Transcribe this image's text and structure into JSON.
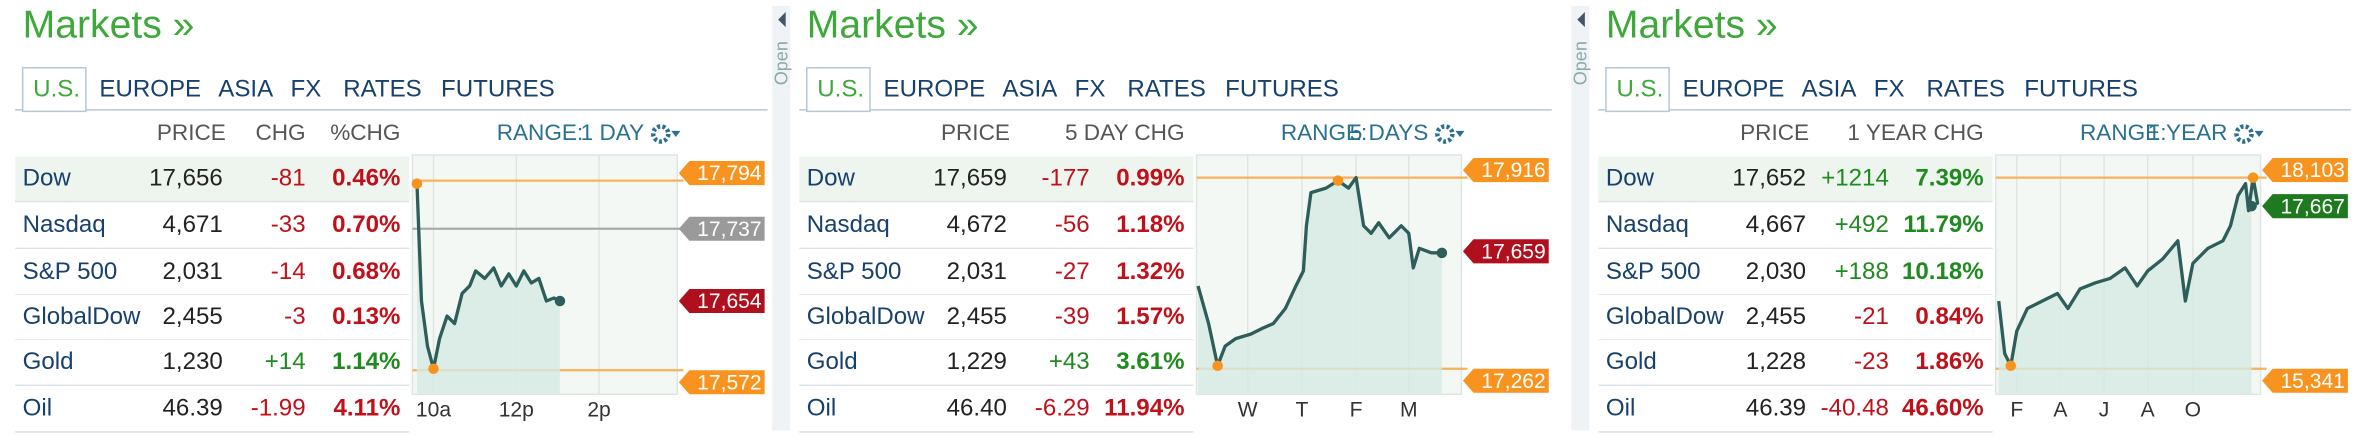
{
  "panels": [
    {
      "title": "Markets »",
      "tabs": [
        "U.S.",
        "EUROPE",
        "ASIA",
        "FX",
        "RATES",
        "FUTURES"
      ],
      "active_tab": 0,
      "columns": [
        "PRICE",
        "CHG",
        "%CHG"
      ],
      "range_label": "RANGE:",
      "range_value": "1 DAY",
      "rows": [
        [
          "Dow",
          "17,656",
          "-81",
          "0.46%"
        ],
        [
          "Nasdaq",
          "4,671",
          "-33",
          "0.70%"
        ],
        [
          "S&P 500",
          "2,031",
          "-14",
          "0.68%"
        ],
        [
          "GlobalDow",
          "2,455",
          "-3",
          "0.13%"
        ],
        [
          "Gold",
          "1,230",
          "+14",
          "1.14%"
        ],
        [
          "Oil",
          "46.39",
          "-1.99",
          "4.11%"
        ]
      ],
      "x_labels": [
        "10a",
        "12p",
        "2p"
      ],
      "tags": [
        {
          "text": "17,794",
          "color": "#f7931e"
        },
        {
          "text": "17,737",
          "color": "#9a9a9a"
        },
        {
          "text": "17,654",
          "color": "#b0101e"
        },
        {
          "text": "17,572",
          "color": "#f7931e"
        }
      ]
    },
    {
      "side_tab": "Open",
      "title": "Markets »",
      "tabs": [
        "U.S.",
        "EUROPE",
        "ASIA",
        "FX",
        "RATES",
        "FUTURES"
      ],
      "active_tab": 0,
      "columns": [
        "PRICE",
        "5 DAY CHG"
      ],
      "range_label": "RANGE:",
      "range_value": "5 DAYS",
      "rows": [
        [
          "Dow",
          "17,659",
          "-177",
          "0.99%"
        ],
        [
          "Nasdaq",
          "4,672",
          "-56",
          "1.18%"
        ],
        [
          "S&P 500",
          "2,031",
          "-27",
          "1.32%"
        ],
        [
          "GlobalDow",
          "2,455",
          "-39",
          "1.57%"
        ],
        [
          "Gold",
          "1,229",
          "+43",
          "3.61%"
        ],
        [
          "Oil",
          "46.40",
          "-6.29",
          "11.94%"
        ]
      ],
      "x_labels": [
        "W",
        "T",
        "F",
        "M"
      ],
      "tags": [
        {
          "text": "17,916",
          "color": "#f7931e"
        },
        {
          "text": "17,659",
          "color": "#b0101e"
        },
        {
          "text": "17,262",
          "color": "#f7931e"
        }
      ]
    },
    {
      "side_tab": "Open",
      "title": "Markets »",
      "tabs": [
        "U.S.",
        "EUROPE",
        "ASIA",
        "FX",
        "RATES",
        "FUTURES"
      ],
      "active_tab": 0,
      "columns": [
        "PRICE",
        "1 YEAR CHG"
      ],
      "range_label": "RANGE:",
      "range_value": "1 YEAR",
      "rows": [
        [
          "Dow",
          "17,652",
          "+1214",
          "7.39%"
        ],
        [
          "Nasdaq",
          "4,667",
          "+492",
          "11.79%"
        ],
        [
          "S&P 500",
          "2,030",
          "+188",
          "10.18%"
        ],
        [
          "GlobalDow",
          "2,455",
          "-21",
          "0.84%"
        ],
        [
          "Gold",
          "1,228",
          "-23",
          "1.86%"
        ],
        [
          "Oil",
          "46.39",
          "-40.48",
          "46.60%"
        ]
      ],
      "x_labels": [
        "F",
        "A",
        "J",
        "A",
        "O"
      ],
      "tags": [
        {
          "text": "18,103",
          "color": "#f7931e"
        },
        {
          "text": "17,667",
          "color": "#1f7a1f"
        },
        {
          "text": "15,341",
          "color": "#f7931e"
        }
      ]
    }
  ]
}
